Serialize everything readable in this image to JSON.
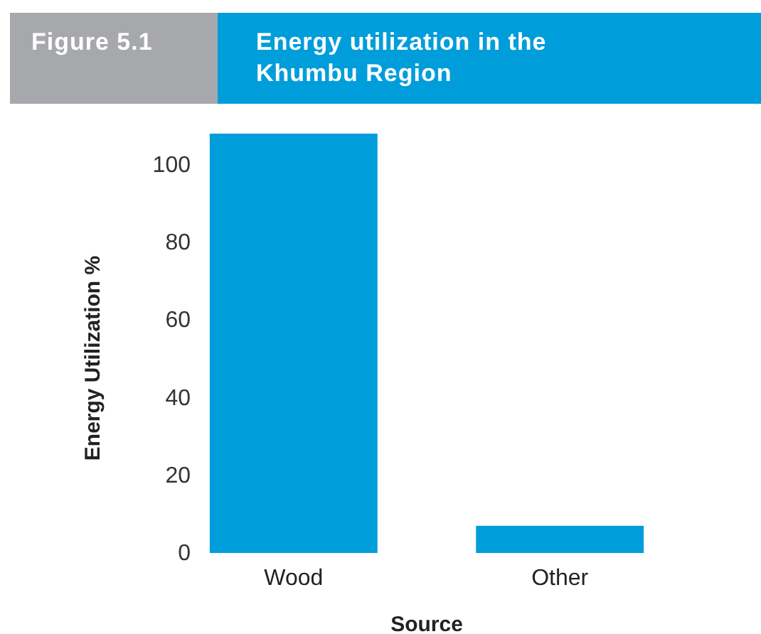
{
  "chart_data": {
    "type": "bar",
    "subtitle": "Figure 5.1",
    "title": "Energy utilization in the Khumbu Region",
    "xlabel": "Source",
    "ylabel": "Energy Utilization %",
    "categories": [
      "Wood",
      "Other"
    ],
    "values": [
      108,
      7
    ],
    "color": "#009ddb",
    "ylim": [
      0,
      108
    ],
    "yticks": [
      0,
      20,
      40,
      60,
      80,
      100
    ],
    "grid": false
  }
}
